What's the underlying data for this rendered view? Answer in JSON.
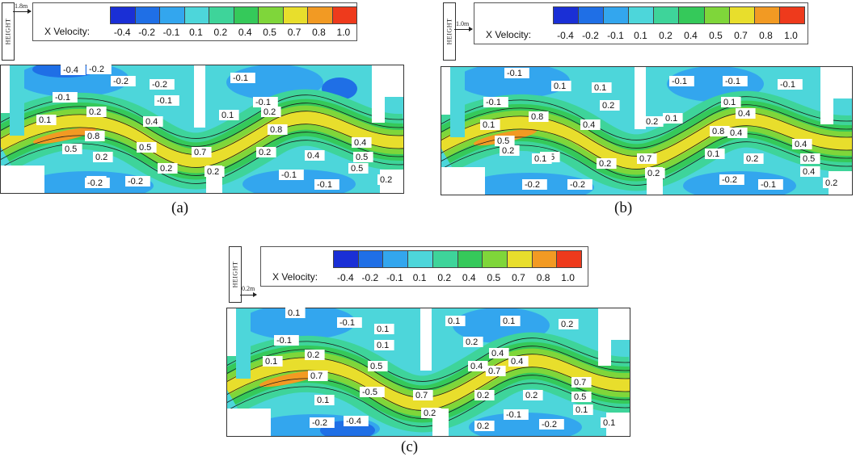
{
  "legend": {
    "label": "X Velocity:",
    "levels": [
      "-0.4",
      "-0.2",
      "-0.1",
      "0.1",
      "0.2",
      "0.4",
      "0.5",
      "0.7",
      "0.8",
      "1.0"
    ],
    "colors": [
      "#1a2fd6",
      "#1f6fe6",
      "#33a6ee",
      "#4dd6da",
      "#3ed49a",
      "#35c95a",
      "#7fd63a",
      "#e8de2c",
      "#f29a23",
      "#ee3a1c"
    ]
  },
  "height_label": "HEIGHT",
  "panels": [
    {
      "caption": "(a)",
      "height_value": "1.8m",
      "contour_labels": [
        "-0.4",
        "-0.2",
        "-0.2",
        "-0.1",
        "-0.1",
        "-0.2",
        "-0.1",
        "0.1",
        "0.2",
        "-0.1",
        "0.1",
        "0.2",
        "0.4",
        "0.8",
        "0.5",
        "0.8",
        "0.5",
        "0.4",
        "0.7",
        "0.5",
        "0.2",
        "0.2",
        "0.2",
        "0.4",
        "0.5",
        "0.2",
        "0.2",
        "-0.1",
        "0.4",
        "-0.2",
        "-0.2",
        "-0.1",
        "0.2"
      ]
    },
    {
      "caption": "(b)",
      "height_value": "1.0m",
      "contour_labels": [
        "-0.1",
        "0.1",
        "0.1",
        "-0.1",
        "-0.1",
        "-0.1",
        "-0.1",
        "0.2",
        "0.8",
        "0.1",
        "0.1",
        "0.4",
        "0.1",
        "0.4",
        "0.2",
        "0.4",
        "0.5",
        "0.8",
        "0.4",
        "0.5",
        "0.2",
        "0.7",
        "0.1",
        "0.5",
        "0.1",
        "0.2",
        "0.2",
        "0.2",
        "0.4",
        "-0.2",
        "-0.2",
        "-0.2",
        "0.2",
        "-0.1"
      ]
    },
    {
      "caption": "(c)",
      "height_value": "0.2m",
      "contour_labels": [
        "0.1",
        "-0.1",
        "0.1",
        "0.1",
        "0.1",
        "0.2",
        "-0.1",
        "0.1",
        "0.2",
        "0.2",
        "0.5",
        "0.4",
        "0.1",
        "0.7",
        "0.4",
        "0.7",
        "0.4",
        "0.7",
        "-0.5",
        "0.7",
        "0.5",
        "0.1",
        "0.2",
        "0.2",
        "0.2",
        "0.1",
        "-0.2",
        "-0.4",
        "0.2",
        "-0.1",
        "-0.2",
        "0.1",
        "0.1"
      ]
    }
  ]
}
